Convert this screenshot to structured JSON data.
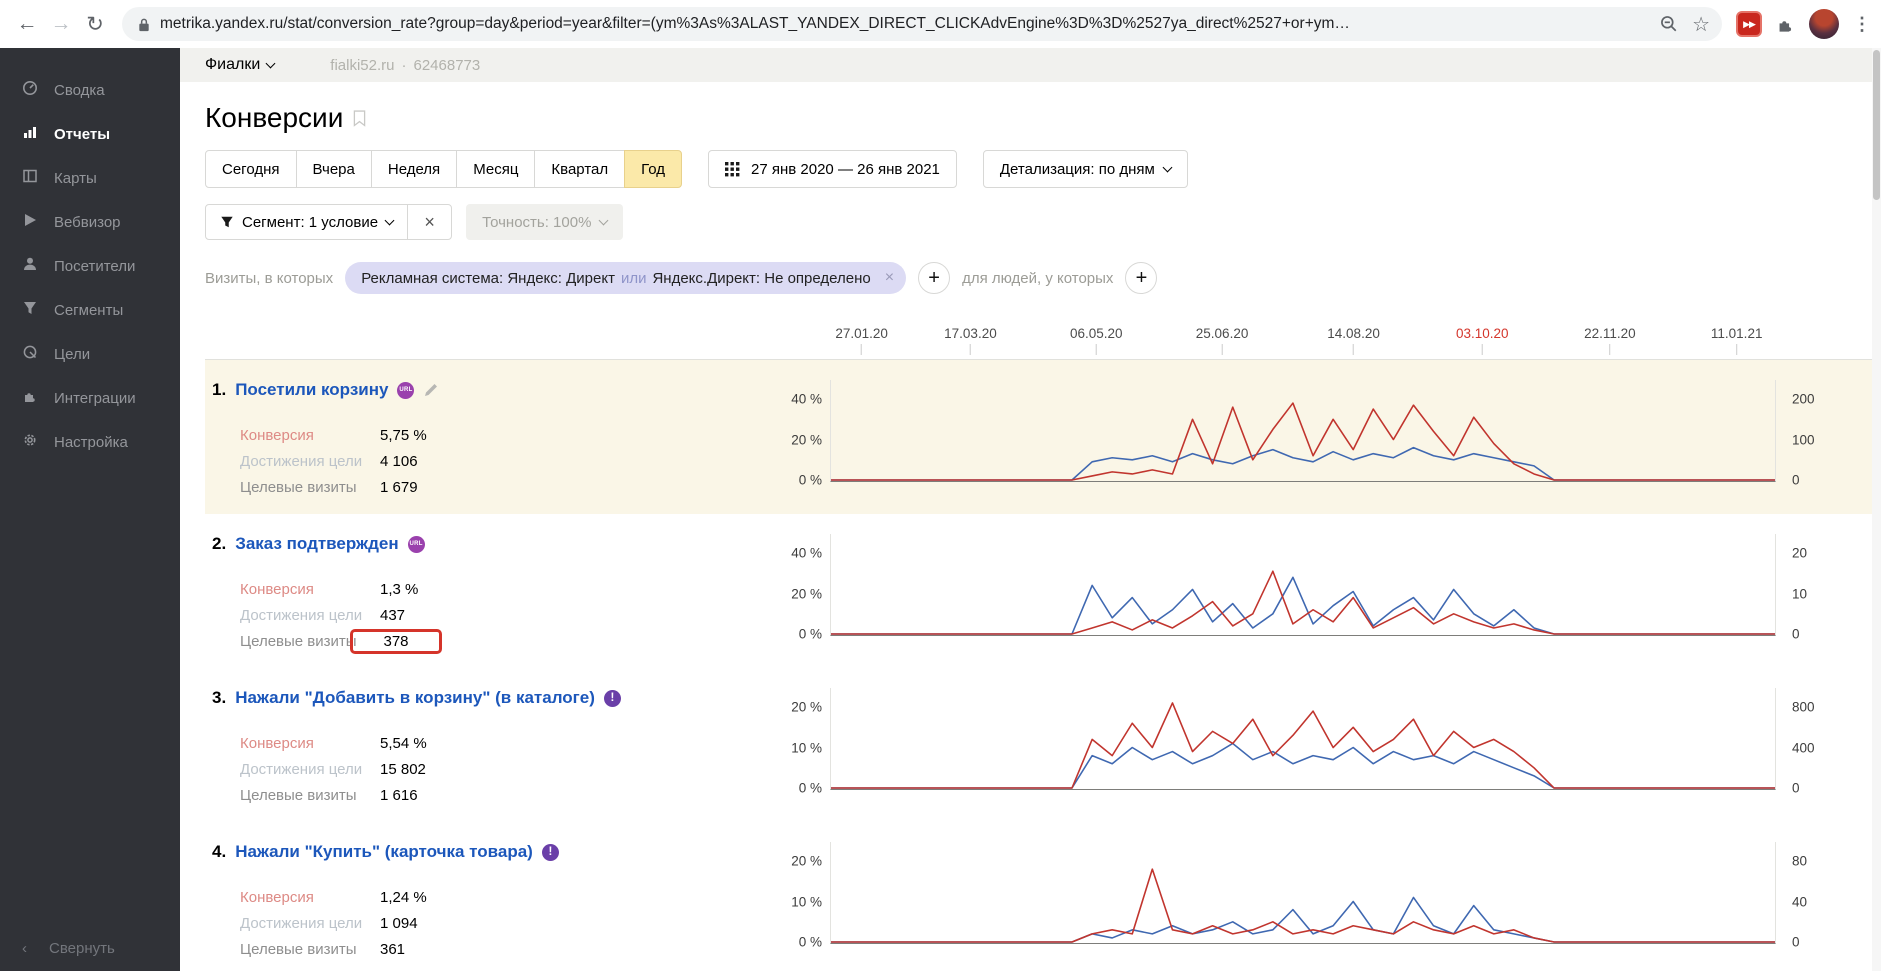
{
  "colors": {
    "red": "#c1352e",
    "blue": "#3f68b1",
    "accent_yellow": "#fbe9a9",
    "chip_bg": "#dcdbf4",
    "annotation_red": "#d5342a",
    "highlight_row": "#faf6e7"
  },
  "browser": {
    "url": "metrika.yandex.ru/stat/conversion_rate?group=day&period=year&filter=(ym%3As%3ALAST_YANDEX_DIRECT_CLICKAdvEngine%3D%3D%2527ya_direct%2527+or+ym…",
    "icons": {
      "back": "←",
      "forward": "→",
      "reload": "↻",
      "star": "☆",
      "kebab": "⋮",
      "extension_badge": "▶▶"
    }
  },
  "sidebar": {
    "items": [
      {
        "label": "Сводка",
        "icon": "gauge-icon",
        "active": false
      },
      {
        "label": "Отчеты",
        "icon": "bar-chart-icon",
        "active": true
      },
      {
        "label": "Карты",
        "icon": "maps-icon",
        "active": false
      },
      {
        "label": "Вебвизор",
        "icon": "play-icon",
        "active": false
      },
      {
        "label": "Посетители",
        "icon": "person-icon",
        "active": false
      },
      {
        "label": "Сегменты",
        "icon": "funnel-icon",
        "active": false
      },
      {
        "label": "Цели",
        "icon": "goal-icon",
        "active": false
      },
      {
        "label": "Интеграции",
        "icon": "puzzle-icon",
        "active": false
      },
      {
        "label": "Настройка",
        "icon": "gear-icon",
        "active": false
      }
    ],
    "collapse_chevron": "‹",
    "collapse_label": "Свернуть"
  },
  "site_header": {
    "counter_name": "Фиалки",
    "site": "fialki52.ru",
    "dot": "·",
    "counter_id": "62468773"
  },
  "page": {
    "title": "Конверсии"
  },
  "toolbar": {
    "periods": [
      "Сегодня",
      "Вчера",
      "Неделя",
      "Месяц",
      "Квартал",
      "Год"
    ],
    "selected_period": "Год",
    "date_range": "27 янв 2020 — 26 янв 2021",
    "detail_label": "Детализация: по дням"
  },
  "segment": {
    "segment_button": "Сегмент: 1 условие",
    "close": "×",
    "accuracy_button": "Точность: 100%",
    "visits_label": "Визиты, в которых",
    "chip": {
      "prefix": "Рекламная система: Яндекс: Директ",
      "or": "или",
      "suffix": "Яндекс.Директ: Не определено",
      "close": "×"
    },
    "plus": "+",
    "people_label": "для людей, у которых"
  },
  "date_axis": {
    "labels": [
      {
        "text": "27.01.20",
        "pos": 2.5,
        "highlight": false
      },
      {
        "text": "17.03.20",
        "pos": 14.0,
        "highlight": false
      },
      {
        "text": "06.05.20",
        "pos": 27.3,
        "highlight": false
      },
      {
        "text": "25.06.20",
        "pos": 40.6,
        "highlight": false
      },
      {
        "text": "14.08.20",
        "pos": 54.5,
        "highlight": false
      },
      {
        "text": "03.10.20",
        "pos": 68.1,
        "highlight": true
      },
      {
        "text": "22.11.20",
        "pos": 81.6,
        "highlight": false
      },
      {
        "text": "11.01.21",
        "pos": 95.0,
        "highlight": false
      }
    ]
  },
  "goals": [
    {
      "num": "1.",
      "title": "Посетили корзину",
      "badge": "url",
      "stats": [
        {
          "label": "Конверсия",
          "value": "5,75 %"
        },
        {
          "label": "Достижения цели",
          "value": "4 106"
        },
        {
          "label": "Целевые визиты",
          "value": "1 679"
        }
      ],
      "chart": {
        "type": "line",
        "y_left": [
          "40 %",
          "20 %",
          "0 %"
        ],
        "y_right": [
          "200",
          "100",
          "0"
        ],
        "ymax": 45,
        "blue": [
          0,
          0,
          0,
          0,
          0,
          0,
          0,
          0,
          0,
          0,
          0,
          0,
          0,
          9,
          11,
          10,
          12,
          9,
          13,
          10,
          8,
          12,
          15,
          11,
          9,
          14,
          10,
          13,
          11,
          16,
          12,
          10,
          13,
          11,
          9,
          7,
          0,
          0,
          0,
          0,
          0,
          0,
          0,
          0,
          0,
          0,
          0,
          0
        ],
        "red": [
          0,
          0,
          0,
          0,
          0,
          0,
          0,
          0,
          0,
          0,
          0,
          0,
          0,
          2,
          4,
          3,
          5,
          3,
          30,
          8,
          36,
          10,
          25,
          38,
          12,
          30,
          15,
          35,
          20,
          37,
          24,
          12,
          31,
          18,
          8,
          3,
          0,
          0,
          0,
          0,
          0,
          0,
          0,
          0,
          0,
          0,
          0,
          0
        ]
      }
    },
    {
      "num": "2.",
      "title": "Заказ подтвержден",
      "badge": "url",
      "stats": [
        {
          "label": "Конверсия",
          "value": "1,3 %"
        },
        {
          "label": "Достижения цели",
          "value": "437"
        },
        {
          "label": "Целевые визиты",
          "value": "378",
          "annotated": true
        }
      ],
      "chart": {
        "type": "line",
        "y_left": [
          "40 %",
          "20 %",
          "0 %"
        ],
        "y_right": [
          "20",
          "10",
          "0"
        ],
        "ymax": 45,
        "blue": [
          0,
          0,
          0,
          0,
          0,
          0,
          0,
          0,
          0,
          0,
          0,
          0,
          0,
          24,
          8,
          18,
          5,
          12,
          22,
          6,
          15,
          3,
          10,
          28,
          5,
          14,
          21,
          4,
          12,
          18,
          7,
          22,
          10,
          4,
          12,
          3,
          0,
          0,
          0,
          0,
          0,
          0,
          0,
          0,
          0,
          0,
          0,
          0
        ],
        "red": [
          0,
          0,
          0,
          0,
          0,
          0,
          0,
          0,
          0,
          0,
          0,
          0,
          0,
          3,
          6,
          2,
          7,
          3,
          9,
          16,
          4,
          10,
          31,
          5,
          12,
          6,
          18,
          3,
          8,
          13,
          5,
          10,
          6,
          3,
          5,
          2,
          0,
          0,
          0,
          0,
          0,
          0,
          0,
          0,
          0,
          0,
          0,
          0
        ]
      }
    },
    {
      "num": "3.",
      "title": "Нажали \"Добавить в корзину\" (в каталоге)",
      "badge": "!",
      "stats": [
        {
          "label": "Конверсия",
          "value": "5,54 %"
        },
        {
          "label": "Достижения цели",
          "value": "15 802"
        },
        {
          "label": "Целевые визиты",
          "value": "1 616"
        }
      ],
      "chart": {
        "type": "line",
        "y_left": [
          "20 %",
          "10 %",
          "0 %"
        ],
        "y_right": [
          "800",
          "400",
          "0"
        ],
        "ymax": 22.5,
        "blue": [
          0,
          0,
          0,
          0,
          0,
          0,
          0,
          0,
          0,
          0,
          0,
          0,
          0,
          8,
          6,
          10,
          7,
          9,
          6,
          8,
          11,
          7,
          9,
          6,
          8,
          7,
          10,
          6,
          9,
          7,
          8,
          6,
          9,
          7,
          5,
          3,
          0,
          0,
          0,
          0,
          0,
          0,
          0,
          0,
          0,
          0,
          0,
          0
        ],
        "red": [
          0,
          0,
          0,
          0,
          0,
          0,
          0,
          0,
          0,
          0,
          0,
          0,
          0,
          12,
          8,
          16,
          10,
          21,
          9,
          14,
          11,
          17,
          8,
          13,
          19,
          10,
          15,
          9,
          12,
          17,
          8,
          14,
          10,
          12,
          9,
          5,
          0,
          0,
          0,
          0,
          0,
          0,
          0,
          0,
          0,
          0,
          0,
          0
        ]
      }
    },
    {
      "num": "4.",
      "title": "Нажали \"Купить\" (карточка товара)",
      "badge": "!",
      "stats": [
        {
          "label": "Конверсия",
          "value": "1,24 %"
        },
        {
          "label": "Достижения цели",
          "value": "1 094"
        },
        {
          "label": "Целевые визиты",
          "value": "361"
        }
      ],
      "chart": {
        "type": "line",
        "y_left": [
          "20 %",
          "10 %",
          "0 %"
        ],
        "y_right": [
          "80",
          "40",
          "0"
        ],
        "ymax": 22.5,
        "blue": [
          0,
          0,
          0,
          0,
          0,
          0,
          0,
          0,
          0,
          0,
          0,
          0,
          0,
          2,
          1,
          3,
          2,
          4,
          2,
          3,
          5,
          2,
          3,
          8,
          2,
          4,
          10,
          3,
          2,
          11,
          4,
          2,
          9,
          3,
          2,
          1,
          0,
          0,
          0,
          0,
          0,
          0,
          0,
          0,
          0,
          0,
          0,
          0
        ],
        "red": [
          0,
          0,
          0,
          0,
          0,
          0,
          0,
          0,
          0,
          0,
          0,
          0,
          0,
          2,
          3,
          2,
          18,
          3,
          2,
          4,
          2,
          3,
          5,
          2,
          3,
          2,
          4,
          3,
          2,
          5,
          3,
          2,
          4,
          2,
          3,
          1,
          0,
          0,
          0,
          0,
          0,
          0,
          0,
          0,
          0,
          0,
          0,
          0
        ]
      }
    }
  ]
}
